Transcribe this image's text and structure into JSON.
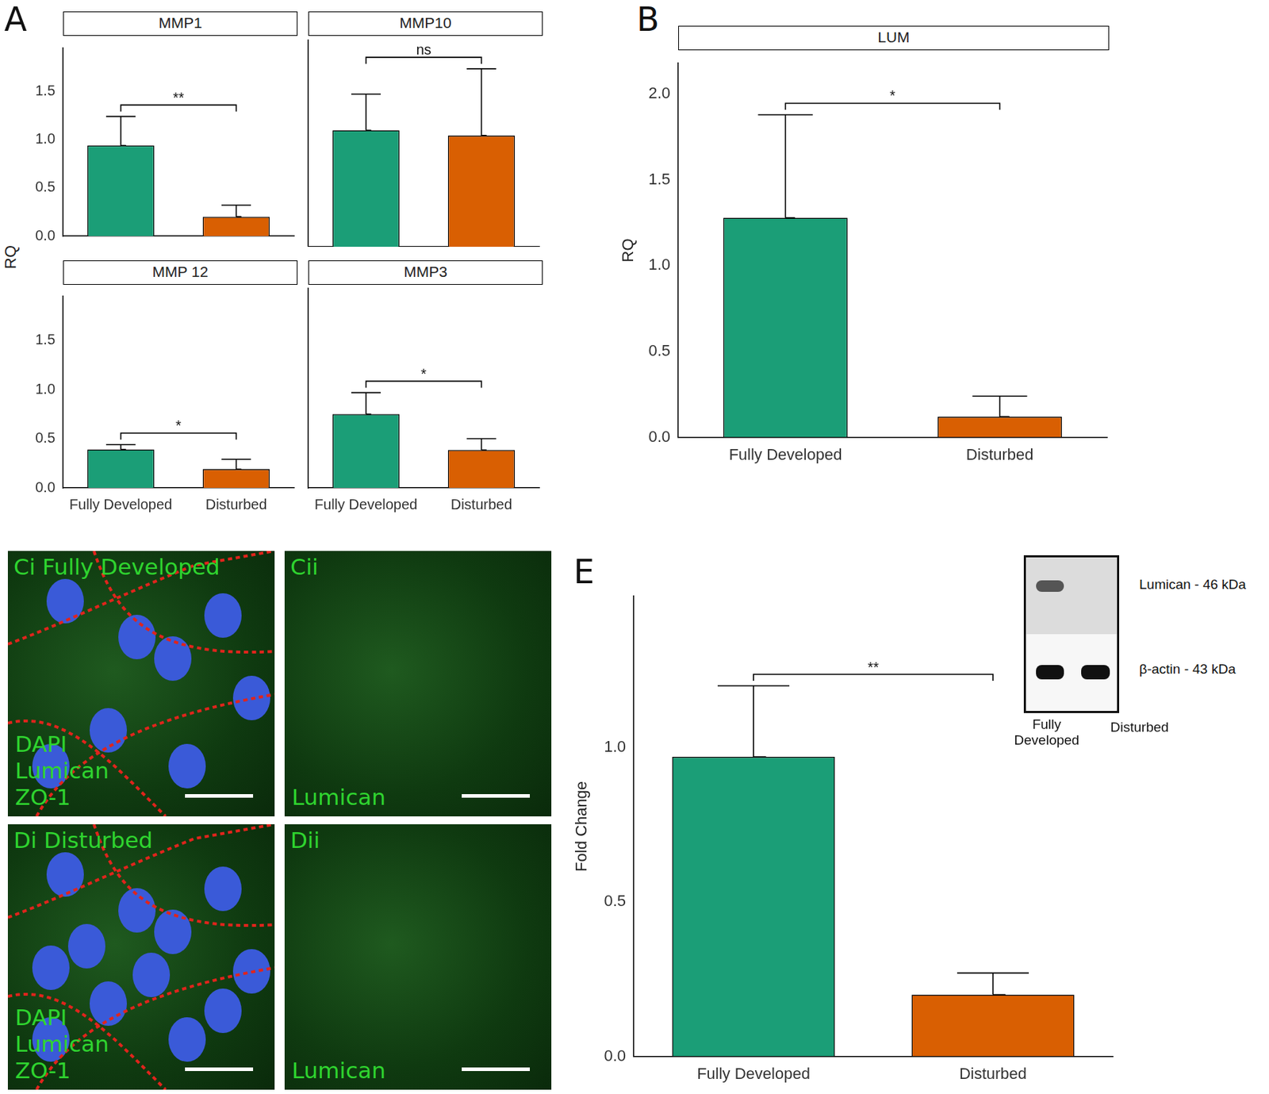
{
  "chart_data": [
    {
      "type": "bar",
      "title": "MMP1",
      "categories": [
        null,
        null
      ],
      "values": [
        0.94,
        0.2
      ],
      "errors": [
        0.3,
        0.12
      ],
      "colors": [
        "#1b9e77",
        "#d95f02"
      ],
      "ylim": [
        0,
        1.95
      ],
      "yticks": [
        {
          "value": 0,
          "label": "0.0"
        },
        0.5,
        {
          "value": 1,
          "label": "1.0"
        },
        1.5
      ],
      "grid": false,
      "tick_labels": "y",
      "annotations": [
        {
          "text": "**"
        }
      ]
    },
    {
      "type": "bar",
      "title": "MMP10",
      "categories": [
        null,
        null
      ],
      "values": [
        1.1,
        1.05
      ],
      "errors": [
        0.34,
        0.63
      ],
      "colors": [
        "#1b9e77",
        "#d95f02"
      ],
      "ylim": [
        0,
        1.95
      ],
      "yticks": [
        {
          "value": 0,
          "label": "0.0"
        },
        0.5,
        {
          "value": 1,
          "label": "1.0"
        },
        1.5
      ],
      "grid": false,
      "tick_labels": false,
      "annotations": [
        {
          "text": "ns"
        }
      ]
    },
    {
      "type": "bar",
      "title": "MMP 12",
      "categories": [
        "Fully Developed",
        "Disturbed"
      ],
      "values": [
        0.39,
        0.19
      ],
      "errors": [
        0.05,
        0.1
      ],
      "colors": [
        "#1b9e77",
        "#d95f02"
      ],
      "ylim": [
        0,
        1.95
      ],
      "yticks": [
        {
          "value": 0,
          "label": "0.0"
        },
        0.5,
        {
          "value": 1,
          "label": "1.0"
        },
        1.5
      ],
      "grid": false,
      "annotations": [
        {
          "text": "*"
        }
      ]
    },
    {
      "type": "bar",
      "title": "MMP3",
      "categories": [
        "Fully Developed",
        "Disturbed"
      ],
      "values": [
        0.72,
        0.37
      ],
      "errors": [
        0.21,
        0.11
      ],
      "colors": [
        "#1b9e77",
        "#d95f02"
      ],
      "ylim": [
        0,
        1.95
      ],
      "yticks": [
        {
          "value": 0,
          "label": "0.0"
        },
        0.5,
        {
          "value": 1,
          "label": "1.0"
        },
        1.5
      ],
      "grid": false,
      "tick_labels": "x",
      "annotations": [
        {
          "text": "*"
        }
      ]
    },
    {
      "type": "bar",
      "title": "LUM",
      "ylabel": "RQ",
      "categories": [
        "Fully Developed",
        "Disturbed"
      ],
      "values": [
        1.28,
        0.12
      ],
      "errors": [
        0.6,
        0.12
      ],
      "colors": [
        "#1b9e77",
        "#d95f02"
      ],
      "ylim": [
        0,
        2.18
      ],
      "yticks": [
        {
          "value": 0,
          "label": "0.0"
        },
        0.5,
        {
          "value": 1,
          "label": "1.0"
        },
        1.5,
        {
          "value": 2,
          "label": "2.0"
        }
      ],
      "grid": false,
      "annotations": [
        {
          "text": "*"
        }
      ]
    },
    {
      "type": "bar",
      "ylabel": "Fold Change",
      "categories": [
        "Fully Developed",
        "Disturbed"
      ],
      "values": [
        0.97,
        0.2
      ],
      "errors": [
        0.23,
        0.07
      ],
      "colors": [
        "#1b9e77",
        "#d95f02"
      ],
      "ylim": [
        0,
        1.49
      ],
      "yticks": [
        {
          "value": 0,
          "label": "0.0"
        },
        0.5,
        {
          "value": 1,
          "label": "1.0"
        }
      ],
      "grid": false,
      "annotations": [
        {
          "text": "**"
        }
      ]
    }
  ],
  "panel_labels": [
    "A",
    "B",
    "E"
  ],
  "panel_a_ylabel": "RQ",
  "images": [
    {
      "label": "Ci",
      "title": "Fully Developed",
      "channels": [
        "DAPI",
        "Lumican",
        "ZO-1"
      ]
    },
    {
      "label": "Cii",
      "channels": [
        "Lumican"
      ]
    },
    {
      "label": "Di",
      "title": "Disturbed",
      "channels": [
        "DAPI",
        "Lumican",
        "ZO-1"
      ]
    },
    {
      "label": "Dii",
      "channels": [
        "Lumican"
      ]
    }
  ],
  "blot": {
    "lanes": [
      "Fully Developed",
      "Disturbed"
    ],
    "rows": [
      {
        "label": "Lumican - 46 kDa",
        "present": [
          true,
          false
        ]
      },
      {
        "label": "β-actin - 43 kDa",
        "present": [
          true,
          true
        ]
      }
    ]
  }
}
